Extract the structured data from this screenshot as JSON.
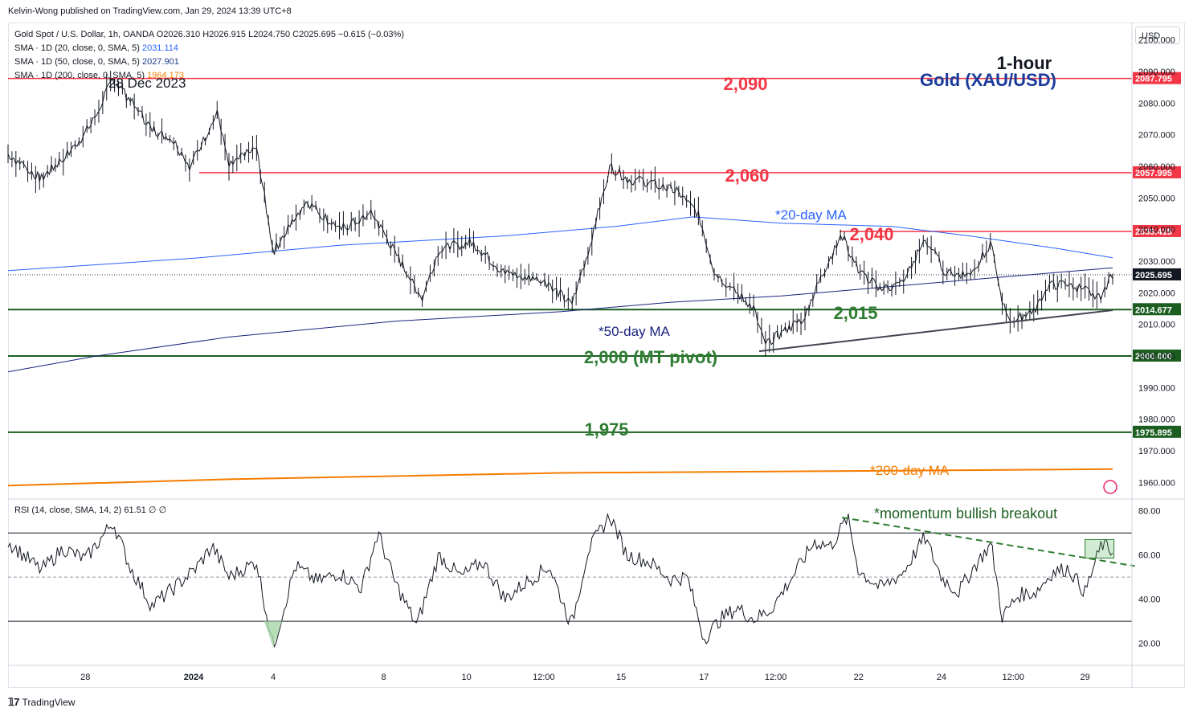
{
  "publish_line": "Kelvin-Wong published on TradingView.com, Jan 29, 2024 13:39 UTC+8",
  "header": {
    "symbol_line": "Gold Spot / U.S. Dollar, 1h, OANDA",
    "ohlc": {
      "o": "O2026.310",
      "h": "H2026.915",
      "l": "L2024.750",
      "c": "C2025.695",
      "chg": "−0.615 (−0.03%)"
    },
    "sma_rows": [
      {
        "label": "SMA · 1D (20, close, 0, SMA, 5)",
        "value": "2031.114",
        "color": "#2962ff"
      },
      {
        "label": "SMA · 1D (50, close, 0, SMA, 5)",
        "value": "2027.901",
        "color": "#1e3a8a"
      },
      {
        "label": "SMA · 1D (200, close, 0, SMA, 5)",
        "value": "1964.173",
        "color": "#f57c00"
      }
    ]
  },
  "currency_button": "USD",
  "footer_brand": "TradingView",
  "colors": {
    "resistance": "#f23645",
    "support": "#1b5e20",
    "ma20": "#2962ff",
    "ma50": "#1a237e",
    "ma200": "#f57c00",
    "candle": "#131722",
    "annotation_red": "#f23645",
    "annotation_green": "#2e7d32"
  },
  "chart_data": {
    "type": "line",
    "title": "Gold (XAU/USD)",
    "timeframe": "1-hour",
    "x_tick_labels": [
      "28",
      "2024",
      "4",
      "8",
      "10",
      "12:00",
      "15",
      "17",
      "12:00",
      "22",
      "24",
      "12:00",
      "29"
    ],
    "price_axis": {
      "ylim": [
        1955,
        2105
      ],
      "ticks": [
        "2100.000",
        "2090.000",
        "2080.000",
        "2070.000",
        "2060.000",
        "2050.000",
        "2040.000",
        "2030.000",
        "2020.000",
        "2010.000",
        "2000.000",
        "1990.000",
        "1980.000",
        "1970.000",
        "1960.000"
      ],
      "tick_values": [
        2100,
        2090,
        2080,
        2070,
        2060,
        2050,
        2040,
        2030,
        2020,
        2010,
        2000,
        1990,
        1980,
        1970,
        1960
      ]
    },
    "series": [
      {
        "name": "Gold Spot / U.S. Dollar",
        "type": "candlestick-close",
        "key_points": [
          {
            "x": 0,
            "y": 2064
          },
          {
            "x": 0.03,
            "y": 2056
          },
          {
            "x": 0.06,
            "y": 2066
          },
          {
            "x": 0.075,
            "y": 2073
          },
          {
            "x": 0.095,
            "y": 2087.8
          },
          {
            "x": 0.11,
            "y": 2081
          },
          {
            "x": 0.13,
            "y": 2072
          },
          {
            "x": 0.15,
            "y": 2068
          },
          {
            "x": 0.165,
            "y": 2060
          },
          {
            "x": 0.19,
            "y": 2077
          },
          {
            "x": 0.2,
            "y": 2060
          },
          {
            "x": 0.225,
            "y": 2066
          },
          {
            "x": 0.24,
            "y": 2033
          },
          {
            "x": 0.27,
            "y": 2049
          },
          {
            "x": 0.3,
            "y": 2040
          },
          {
            "x": 0.33,
            "y": 2045
          },
          {
            "x": 0.36,
            "y": 2027
          },
          {
            "x": 0.375,
            "y": 2018
          },
          {
            "x": 0.39,
            "y": 2034
          },
          {
            "x": 0.42,
            "y": 2036
          },
          {
            "x": 0.45,
            "y": 2026
          },
          {
            "x": 0.47,
            "y": 2025
          },
          {
            "x": 0.49,
            "y": 2023
          },
          {
            "x": 0.51,
            "y": 2016
          },
          {
            "x": 0.525,
            "y": 2033
          },
          {
            "x": 0.545,
            "y": 2060
          },
          {
            "x": 0.56,
            "y": 2056
          },
          {
            "x": 0.58,
            "y": 2055
          },
          {
            "x": 0.605,
            "y": 2052
          },
          {
            "x": 0.625,
            "y": 2045
          },
          {
            "x": 0.64,
            "y": 2026
          },
          {
            "x": 0.66,
            "y": 2020
          },
          {
            "x": 0.675,
            "y": 2015
          },
          {
            "x": 0.685,
            "y": 2004
          },
          {
            "x": 0.7,
            "y": 2007
          },
          {
            "x": 0.72,
            "y": 2012
          },
          {
            "x": 0.74,
            "y": 2028
          },
          {
            "x": 0.755,
            "y": 2038
          },
          {
            "x": 0.77,
            "y": 2027
          },
          {
            "x": 0.79,
            "y": 2021
          },
          {
            "x": 0.81,
            "y": 2023
          },
          {
            "x": 0.83,
            "y": 2037
          },
          {
            "x": 0.85,
            "y": 2026
          },
          {
            "x": 0.87,
            "y": 2026
          },
          {
            "x": 0.89,
            "y": 2035
          },
          {
            "x": 0.9,
            "y": 2016
          },
          {
            "x": 0.91,
            "y": 2011
          },
          {
            "x": 0.93,
            "y": 2015
          },
          {
            "x": 0.94,
            "y": 2022
          },
          {
            "x": 0.96,
            "y": 2023
          },
          {
            "x": 0.98,
            "y": 2020
          },
          {
            "x": 0.99,
            "y": 2019
          },
          {
            "x": 1.0,
            "y": 2025.7
          }
        ]
      },
      {
        "name": "*20-day MA",
        "key_points": [
          {
            "x": 0,
            "y": 2027
          },
          {
            "x": 0.17,
            "y": 2031
          },
          {
            "x": 0.3,
            "y": 2035
          },
          {
            "x": 0.45,
            "y": 2038
          },
          {
            "x": 0.55,
            "y": 2041
          },
          {
            "x": 0.62,
            "y": 2044
          },
          {
            "x": 0.7,
            "y": 2042
          },
          {
            "x": 0.8,
            "y": 2041
          },
          {
            "x": 0.87,
            "y": 2038
          },
          {
            "x": 0.95,
            "y": 2034
          },
          {
            "x": 1.0,
            "y": 2031.1
          }
        ]
      },
      {
        "name": "*50-day MA",
        "key_points": [
          {
            "x": 0,
            "y": 1995
          },
          {
            "x": 0.08,
            "y": 2000
          },
          {
            "x": 0.2,
            "y": 2006
          },
          {
            "x": 0.35,
            "y": 2011
          },
          {
            "x": 0.5,
            "y": 2014
          },
          {
            "x": 0.6,
            "y": 2017
          },
          {
            "x": 0.7,
            "y": 2019
          },
          {
            "x": 0.8,
            "y": 2022
          },
          {
            "x": 0.9,
            "y": 2025
          },
          {
            "x": 1.0,
            "y": 2027.9
          }
        ]
      },
      {
        "name": "*200-day MA",
        "key_points": [
          {
            "x": 0,
            "y": 1959
          },
          {
            "x": 0.2,
            "y": 1961
          },
          {
            "x": 0.5,
            "y": 1963
          },
          {
            "x": 0.75,
            "y": 1963.6
          },
          {
            "x": 1.0,
            "y": 1964.2
          }
        ]
      }
    ],
    "horizontal_levels": [
      {
        "label": "2,090",
        "price": 2087.795,
        "price_label": "2087.795",
        "kind": "resistance"
      },
      {
        "label": "2,060",
        "price": 2057.995,
        "price_label": "2057.995",
        "kind": "resistance"
      },
      {
        "label": "2,040",
        "price": 2039.415,
        "price_label": "2039.415",
        "kind": "resistance"
      },
      {
        "label": "2,015",
        "price": 2014.677,
        "price_label": "2014.677",
        "kind": "support"
      },
      {
        "label": "2,000 (MT pivot)",
        "price": 2000.0,
        "price_label": "2000.000",
        "kind": "support"
      },
      {
        "label": "1,975",
        "price": 1975.895,
        "price_label": "1975.895",
        "kind": "support"
      }
    ],
    "last_price": {
      "value": 2025.695,
      "label": "2025.695"
    },
    "annotations": {
      "date_high": "28 Dec 2023",
      "ma20_label": "*20-day MA",
      "ma50_label": "*50-day MA",
      "ma200_label": "*200-day MA",
      "rsi_note": "*momentum bullish breakout"
    },
    "rsi": {
      "legend": "RSI (14, close, SMA, 14, 2)",
      "value": "61.51",
      "flags": "∅ ∅",
      "ylim": [
        10,
        85
      ],
      "ticks": [
        "80.00",
        "60.00",
        "40.00",
        "20.00"
      ],
      "tick_values": [
        80,
        60,
        40,
        20
      ],
      "overbought": 70,
      "oversold": 30,
      "mid": 50,
      "key_points": [
        {
          "x": 0,
          "y": 66
        },
        {
          "x": 0.03,
          "y": 53
        },
        {
          "x": 0.05,
          "y": 63
        },
        {
          "x": 0.07,
          "y": 58
        },
        {
          "x": 0.085,
          "y": 68
        },
        {
          "x": 0.095,
          "y": 75
        },
        {
          "x": 0.11,
          "y": 55
        },
        {
          "x": 0.13,
          "y": 37
        },
        {
          "x": 0.15,
          "y": 45
        },
        {
          "x": 0.17,
          "y": 54
        },
        {
          "x": 0.185,
          "y": 64
        },
        {
          "x": 0.2,
          "y": 50
        },
        {
          "x": 0.225,
          "y": 57
        },
        {
          "x": 0.24,
          "y": 18
        },
        {
          "x": 0.26,
          "y": 55
        },
        {
          "x": 0.28,
          "y": 48
        },
        {
          "x": 0.3,
          "y": 52
        },
        {
          "x": 0.32,
          "y": 45
        },
        {
          "x": 0.335,
          "y": 70
        },
        {
          "x": 0.35,
          "y": 48
        },
        {
          "x": 0.37,
          "y": 28
        },
        {
          "x": 0.39,
          "y": 60
        },
        {
          "x": 0.41,
          "y": 50
        },
        {
          "x": 0.43,
          "y": 57
        },
        {
          "x": 0.45,
          "y": 40
        },
        {
          "x": 0.47,
          "y": 48
        },
        {
          "x": 0.49,
          "y": 55
        },
        {
          "x": 0.51,
          "y": 28
        },
        {
          "x": 0.525,
          "y": 62
        },
        {
          "x": 0.545,
          "y": 78
        },
        {
          "x": 0.56,
          "y": 60
        },
        {
          "x": 0.58,
          "y": 57
        },
        {
          "x": 0.6,
          "y": 49
        },
        {
          "x": 0.615,
          "y": 50
        },
        {
          "x": 0.63,
          "y": 22
        },
        {
          "x": 0.645,
          "y": 31
        },
        {
          "x": 0.66,
          "y": 36
        },
        {
          "x": 0.675,
          "y": 31
        },
        {
          "x": 0.69,
          "y": 35
        },
        {
          "x": 0.71,
          "y": 50
        },
        {
          "x": 0.73,
          "y": 66
        },
        {
          "x": 0.745,
          "y": 64
        },
        {
          "x": 0.76,
          "y": 77
        },
        {
          "x": 0.77,
          "y": 53
        },
        {
          "x": 0.79,
          "y": 45
        },
        {
          "x": 0.81,
          "y": 52
        },
        {
          "x": 0.83,
          "y": 68
        },
        {
          "x": 0.845,
          "y": 50
        },
        {
          "x": 0.86,
          "y": 43
        },
        {
          "x": 0.875,
          "y": 55
        },
        {
          "x": 0.89,
          "y": 65
        },
        {
          "x": 0.9,
          "y": 32
        },
        {
          "x": 0.915,
          "y": 42
        },
        {
          "x": 0.93,
          "y": 43
        },
        {
          "x": 0.945,
          "y": 52
        },
        {
          "x": 0.96,
          "y": 54
        },
        {
          "x": 0.975,
          "y": 43
        },
        {
          "x": 0.99,
          "y": 65
        },
        {
          "x": 1.0,
          "y": 61.5
        }
      ]
    }
  }
}
